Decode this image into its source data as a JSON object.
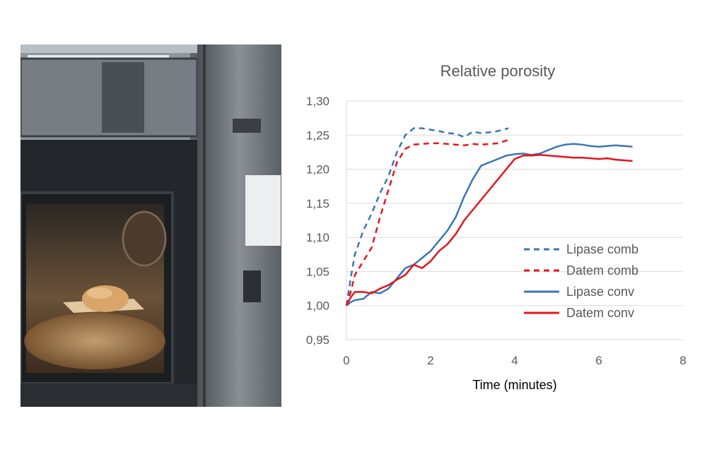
{
  "colors": {
    "lipase": "#3a75b8",
    "datem": "#e8141b"
  },
  "chart_data": {
    "type": "line",
    "title": "Relative porosity",
    "xlabel": "Time (minutes)",
    "ylabel": "",
    "xlim": [
      0,
      8
    ],
    "ylim": [
      0.95,
      1.3
    ],
    "x_ticks": [
      0,
      2,
      4,
      6,
      8
    ],
    "x_tick_labels": [
      "0",
      "2",
      "4",
      "6",
      "8"
    ],
    "y_ticks": [
      0.95,
      1.0,
      1.05,
      1.1,
      1.15,
      1.2,
      1.25,
      1.3
    ],
    "y_tick_labels": [
      "0,95",
      "1,00",
      "1,05",
      "1,10",
      "1,15",
      "1,20",
      "1,25",
      "1,30"
    ],
    "grid": "horizontal",
    "legend_position": "bottom-right",
    "series": [
      {
        "name": "Lipase comb",
        "style": "dashed",
        "color": "#3a75b8",
        "x": [
          0,
          0.1,
          0.2,
          0.4,
          0.6,
          0.8,
          1.0,
          1.2,
          1.4,
          1.6,
          1.8,
          2.0,
          2.2,
          2.4,
          2.6,
          2.8,
          3.0,
          3.2,
          3.4,
          3.6,
          3.85
        ],
        "y": [
          1.0,
          1.04,
          1.075,
          1.11,
          1.135,
          1.165,
          1.19,
          1.225,
          1.25,
          1.26,
          1.26,
          1.258,
          1.256,
          1.253,
          1.252,
          1.247,
          1.255,
          1.253,
          1.254,
          1.256,
          1.26
        ]
      },
      {
        "name": "Datem comb",
        "style": "dashed",
        "color": "#e8141b",
        "x": [
          0,
          0.1,
          0.2,
          0.4,
          0.6,
          0.8,
          1.0,
          1.2,
          1.4,
          1.6,
          1.8,
          2.0,
          2.2,
          2.4,
          2.6,
          2.8,
          3.0,
          3.2,
          3.4,
          3.6,
          3.85
        ],
        "y": [
          1.0,
          1.02,
          1.045,
          1.065,
          1.085,
          1.13,
          1.17,
          1.21,
          1.23,
          1.236,
          1.237,
          1.238,
          1.238,
          1.237,
          1.236,
          1.235,
          1.237,
          1.236,
          1.237,
          1.238,
          1.243
        ]
      },
      {
        "name": "Lipase conv",
        "style": "solid",
        "color": "#3a75b8",
        "x": [
          0,
          0.1,
          0.2,
          0.4,
          0.6,
          0.8,
          1.0,
          1.2,
          1.4,
          1.6,
          1.8,
          2.0,
          2.2,
          2.4,
          2.6,
          2.8,
          3.0,
          3.2,
          3.4,
          3.6,
          3.8,
          4.0,
          4.2,
          4.4,
          4.6,
          4.8,
          5.0,
          5.2,
          5.4,
          5.6,
          5.8,
          6.0,
          6.2,
          6.4,
          6.6,
          6.8
        ],
        "y": [
          1.0,
          1.005,
          1.008,
          1.01,
          1.02,
          1.018,
          1.025,
          1.04,
          1.055,
          1.06,
          1.07,
          1.08,
          1.095,
          1.11,
          1.13,
          1.16,
          1.185,
          1.205,
          1.21,
          1.215,
          1.22,
          1.222,
          1.223,
          1.221,
          1.223,
          1.228,
          1.233,
          1.236,
          1.237,
          1.236,
          1.234,
          1.233,
          1.234,
          1.235,
          1.234,
          1.233
        ]
      },
      {
        "name": "Datem conv",
        "style": "solid",
        "color": "#e8141b",
        "x": [
          0,
          0.1,
          0.2,
          0.4,
          0.6,
          0.8,
          1.0,
          1.2,
          1.4,
          1.6,
          1.8,
          2.0,
          2.2,
          2.4,
          2.6,
          2.8,
          3.0,
          3.2,
          3.4,
          3.6,
          3.8,
          4.0,
          4.2,
          4.4,
          4.6,
          4.8,
          5.0,
          5.2,
          5.4,
          5.6,
          5.8,
          6.0,
          6.2,
          6.4,
          6.6,
          6.8
        ],
        "y": [
          1.0,
          1.012,
          1.02,
          1.02,
          1.018,
          1.025,
          1.03,
          1.038,
          1.045,
          1.06,
          1.055,
          1.065,
          1.08,
          1.09,
          1.105,
          1.125,
          1.14,
          1.155,
          1.17,
          1.185,
          1.2,
          1.215,
          1.22,
          1.22,
          1.221,
          1.22,
          1.219,
          1.218,
          1.217,
          1.217,
          1.216,
          1.215,
          1.216,
          1.214,
          1.213,
          1.212
        ]
      }
    ]
  }
}
